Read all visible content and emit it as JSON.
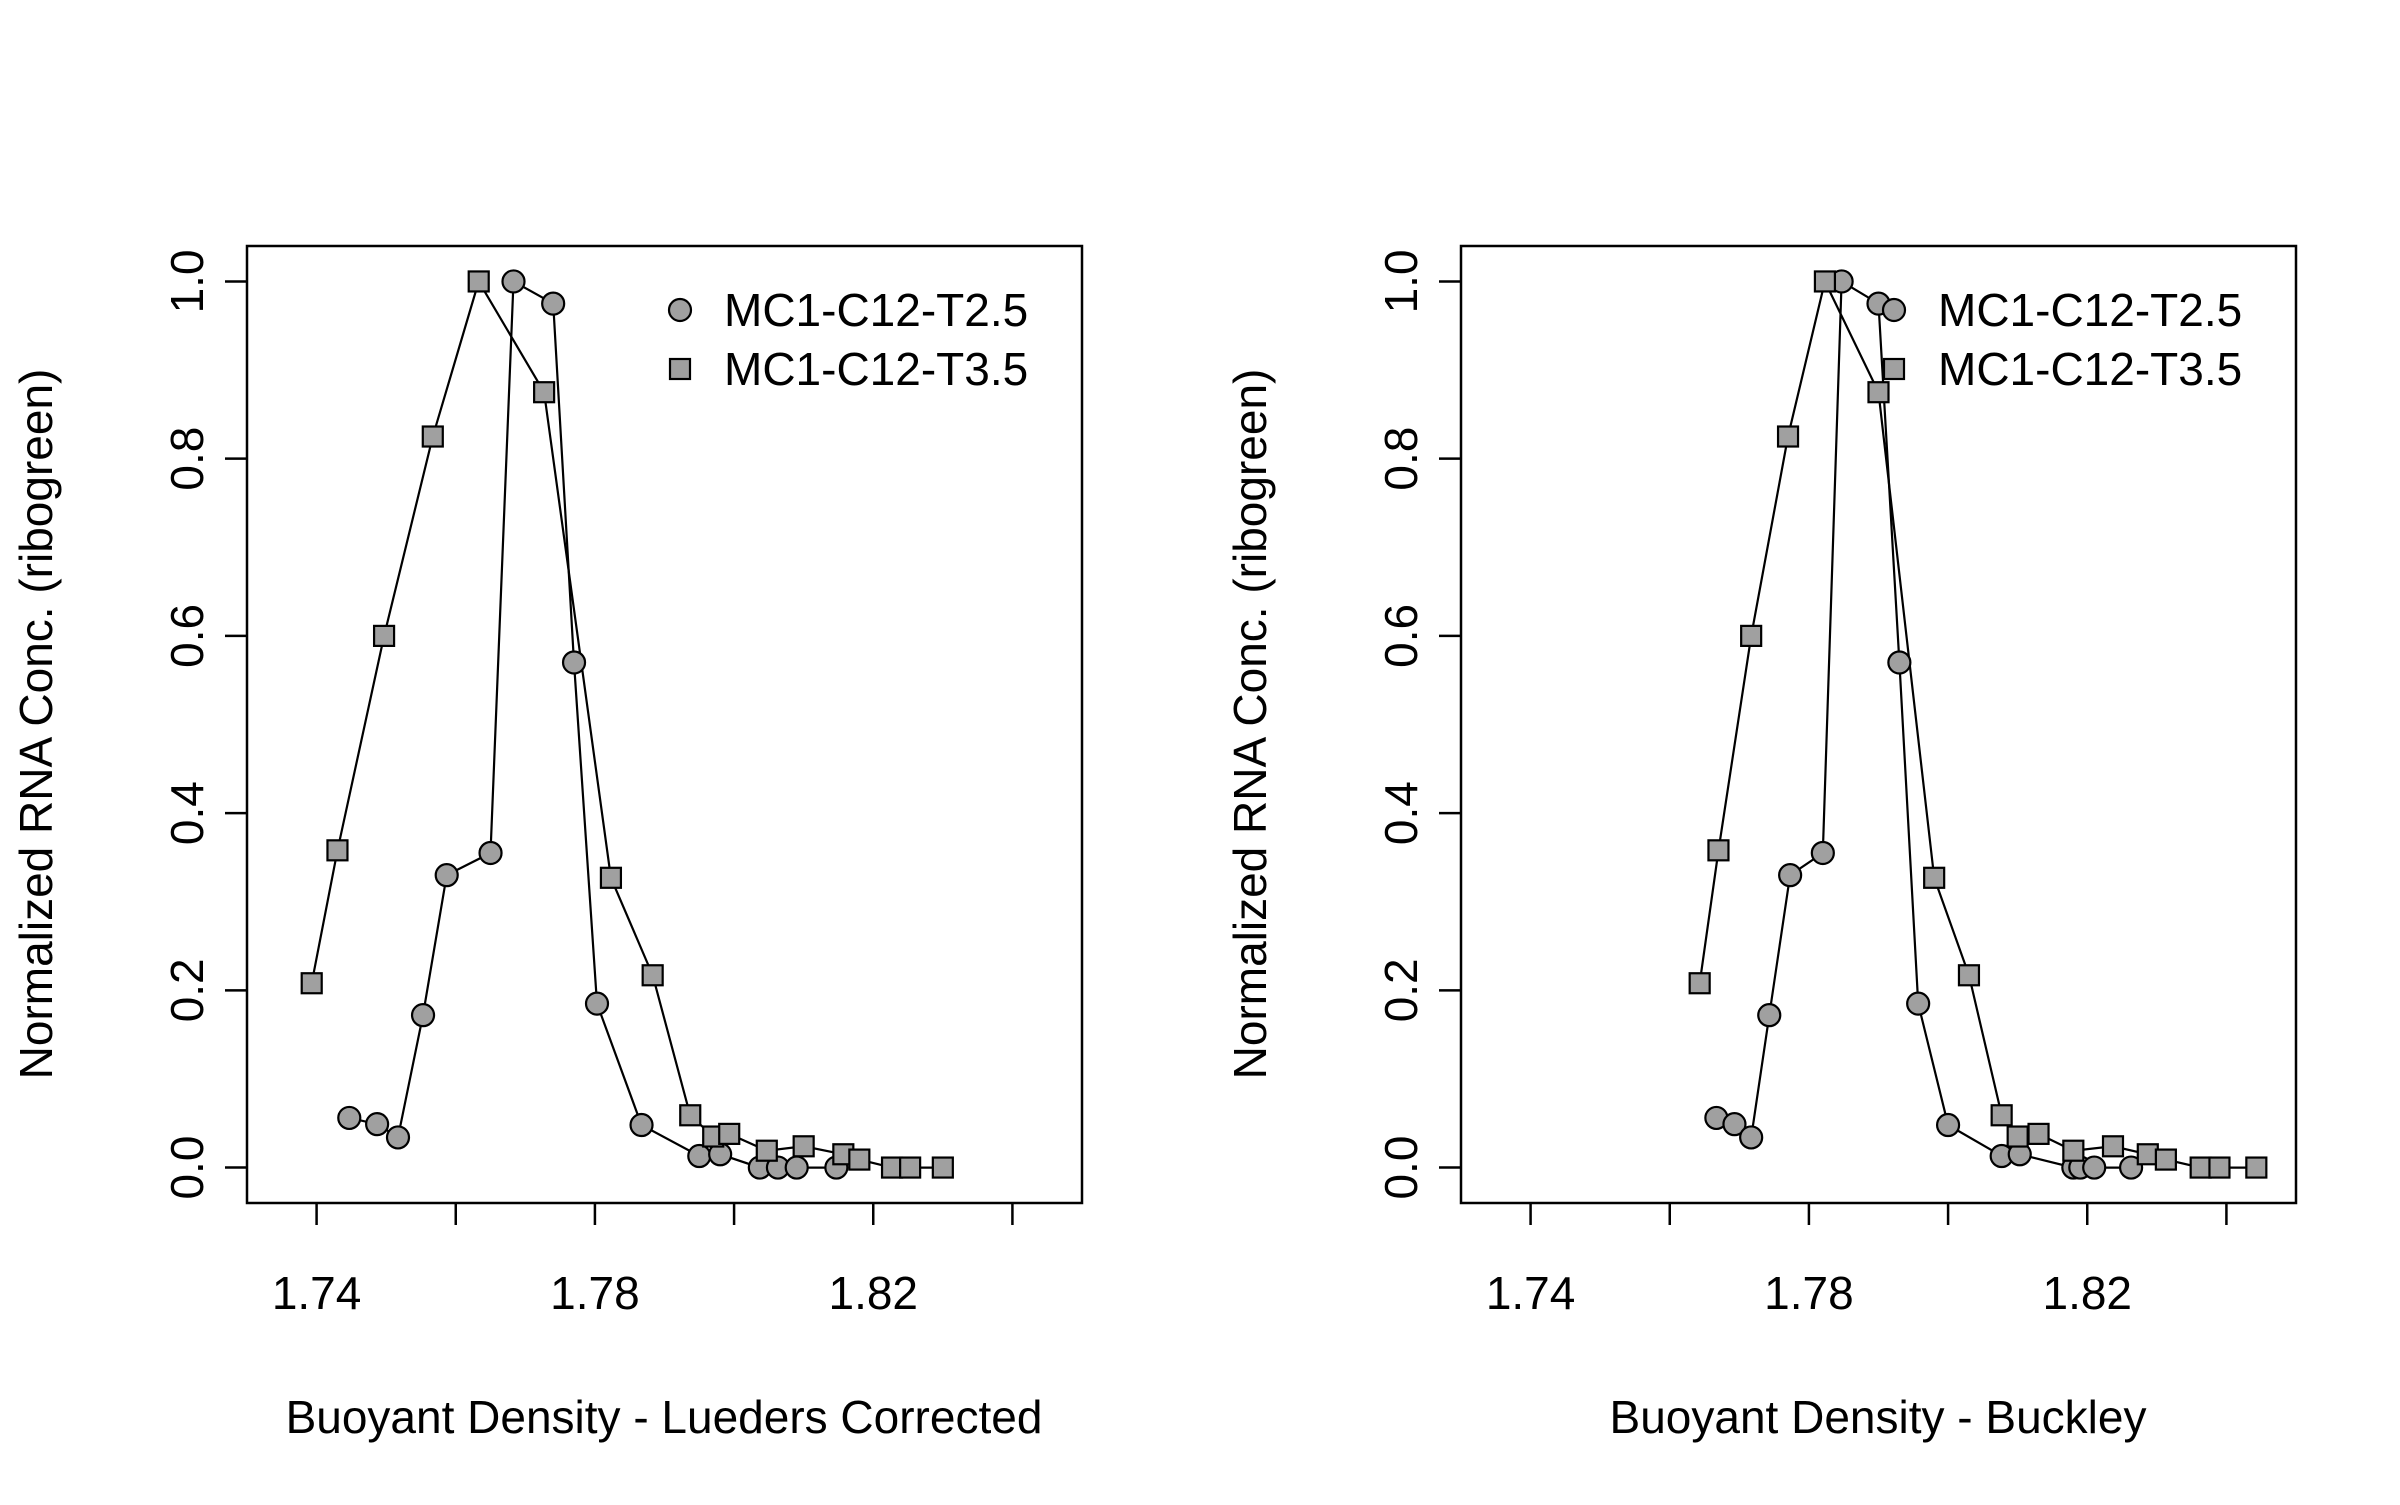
{
  "colors": {
    "marker_fill": "#a0a0a0",
    "marker_stroke": "#000000",
    "line": "#000000",
    "background": "#ffffff"
  },
  "chart_data": [
    {
      "type": "line",
      "xlabel": "Buoyant Density - Lueders Corrected",
      "ylabel": "Normalized RNA Conc. (ribogreen)",
      "xlim": [
        1.73,
        1.85
      ],
      "ylim": [
        -0.04,
        1.04
      ],
      "x_ticks": [
        1.74,
        1.76,
        1.78,
        1.8,
        1.82,
        1.84
      ],
      "x_tick_labels": [
        "1.74",
        "",
        "1.78",
        "",
        "1.82",
        ""
      ],
      "y_ticks": [
        0.0,
        0.2,
        0.4,
        0.6,
        0.8,
        1.0
      ],
      "y_tick_labels": [
        "0.0",
        "0.2",
        "0.4",
        "0.6",
        "0.8",
        "1.0"
      ],
      "grid": false,
      "legend": "top-right",
      "series": [
        {
          "name": "MC1-C12-T2.5",
          "marker": "circle",
          "points": [
            [
              1.7447,
              0.056
            ],
            [
              1.7487,
              0.049
            ],
            [
              1.7517,
              0.034
            ],
            [
              1.7553,
              0.172
            ],
            [
              1.7587,
              0.33
            ],
            [
              1.765,
              0.355
            ],
            [
              1.7683,
              1.0
            ],
            [
              1.774,
              0.975
            ],
            [
              1.777,
              0.57
            ],
            [
              1.7803,
              0.185
            ],
            [
              1.7867,
              0.048
            ],
            [
              1.795,
              0.013
            ],
            [
              1.798,
              0.015
            ],
            [
              1.8037,
              0.0
            ],
            [
              1.8063,
              0.0
            ],
            [
              1.809,
              0.0
            ],
            [
              1.8147,
              0.0
            ]
          ]
        },
        {
          "name": "MC1-C12-T3.5",
          "marker": "square",
          "points": [
            [
              1.7393,
              0.208
            ],
            [
              1.743,
              0.358
            ],
            [
              1.7497,
              0.6
            ],
            [
              1.7567,
              0.825
            ],
            [
              1.7633,
              1.0
            ],
            [
              1.7727,
              0.875
            ],
            [
              1.7823,
              0.327
            ],
            [
              1.7883,
              0.217
            ],
            [
              1.7937,
              0.059
            ],
            [
              1.797,
              0.035
            ],
            [
              1.7993,
              0.038
            ],
            [
              1.8047,
              0.019
            ],
            [
              1.81,
              0.024
            ],
            [
              1.8157,
              0.015
            ],
            [
              1.818,
              0.009
            ],
            [
              1.8227,
              0.0
            ],
            [
              1.8253,
              0.0
            ],
            [
              1.83,
              0.0
            ]
          ]
        }
      ]
    },
    {
      "type": "line",
      "xlabel": "Buoyant Density - Buckley",
      "ylabel": "Normalized RNA Conc. (ribogreen)",
      "xlim": [
        1.73,
        1.85
      ],
      "ylim": [
        -0.04,
        1.04
      ],
      "x_ticks": [
        1.74,
        1.76,
        1.78,
        1.8,
        1.82,
        1.84
      ],
      "x_tick_labels": [
        "1.74",
        "",
        "1.78",
        "",
        "1.82",
        ""
      ],
      "y_ticks": [
        0.0,
        0.2,
        0.4,
        0.6,
        0.8,
        1.0
      ],
      "y_tick_labels": [
        "0.0",
        "0.2",
        "0.4",
        "0.6",
        "0.8",
        "1.0"
      ],
      "grid": false,
      "legend": "top-right",
      "series": [
        {
          "name": "MC1-C12-T2.5",
          "marker": "circle",
          "points": [
            [
              1.7667,
              0.056
            ],
            [
              1.7693,
              0.049
            ],
            [
              1.7717,
              0.034
            ],
            [
              1.7743,
              0.172
            ],
            [
              1.7773,
              0.33
            ],
            [
              1.782,
              0.355
            ],
            [
              1.7847,
              1.0
            ],
            [
              1.79,
              0.975
            ],
            [
              1.793,
              0.57
            ],
            [
              1.7957,
              0.185
            ],
            [
              1.8,
              0.048
            ],
            [
              1.8077,
              0.013
            ],
            [
              1.8103,
              0.015
            ],
            [
              1.818,
              0.0
            ],
            [
              1.819,
              0.0
            ],
            [
              1.821,
              0.0
            ],
            [
              1.8263,
              0.0
            ]
          ]
        },
        {
          "name": "MC1-C12-T3.5",
          "marker": "square",
          "points": [
            [
              1.7643,
              0.208
            ],
            [
              1.767,
              0.358
            ],
            [
              1.7717,
              0.6
            ],
            [
              1.777,
              0.825
            ],
            [
              1.7823,
              1.0
            ],
            [
              1.79,
              0.875
            ],
            [
              1.798,
              0.327
            ],
            [
              1.803,
              0.217
            ],
            [
              1.8077,
              0.059
            ],
            [
              1.81,
              0.035
            ],
            [
              1.813,
              0.038
            ],
            [
              1.818,
              0.019
            ],
            [
              1.8237,
              0.024
            ],
            [
              1.8287,
              0.015
            ],
            [
              1.8313,
              0.009
            ],
            [
              1.8363,
              0.0
            ],
            [
              1.839,
              0.0
            ],
            [
              1.8443,
              0.0
            ]
          ]
        }
      ]
    }
  ]
}
